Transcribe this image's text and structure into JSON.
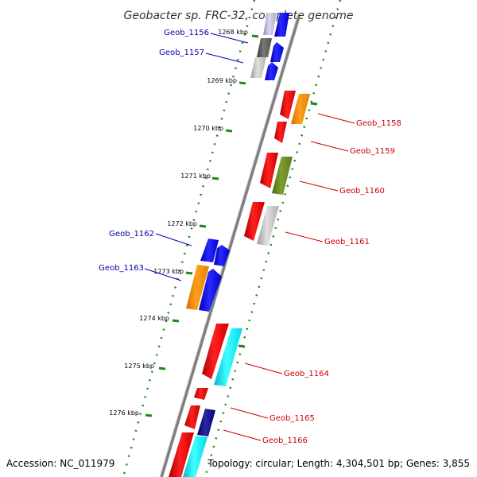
{
  "title": "Geobacter sp. FRC-32, complete genome",
  "footer": {
    "accession": "Accession: NC_011979",
    "summary": "Topology: circular; Length: 4,304,501 bp; Genes: 3,855"
  },
  "colors": {
    "backbone": "#808080",
    "tick_dots": "#1a8a1a",
    "reverse_label": "#0000aa",
    "forward_label": "#cc0000"
  },
  "kbp_labels": [
    "1268 kbp",
    "1269 kbp",
    "1270 kbp",
    "1271 kbp",
    "1272 kbp",
    "1273 kbp",
    "1274 kbp",
    "1275 kbp",
    "1276 kbp"
  ],
  "gene_labels": [
    {
      "text": "Geob_1156",
      "strand": "reverse"
    },
    {
      "text": "Geob_1157",
      "strand": "reverse"
    },
    {
      "text": "Geob_1158",
      "strand": "forward"
    },
    {
      "text": "Geob_1159",
      "strand": "forward"
    },
    {
      "text": "Geob_1160",
      "strand": "forward"
    },
    {
      "text": "Geob_1161",
      "strand": "forward"
    },
    {
      "text": "Geob_1162",
      "strand": "reverse"
    },
    {
      "text": "Geob_1163",
      "strand": "reverse"
    },
    {
      "text": "Geob_1164",
      "strand": "forward"
    },
    {
      "text": "Geob_1165",
      "strand": "forward"
    },
    {
      "text": "Geob_1166",
      "strand": "forward"
    }
  ]
}
